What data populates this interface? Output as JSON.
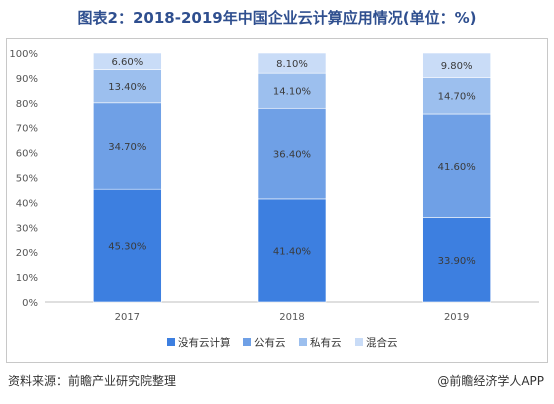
{
  "title": "图表2：2018-2019年中国企业云计算应用情况(单位：%)",
  "source_text": "资料来源：前瞻产业研究院整理",
  "credit_text": "@前瞻经济学人APP",
  "colors": {
    "title": "#2f4f8f",
    "series": [
      "#3d7fe0",
      "#6fa0e6",
      "#9cbfee",
      "#c9dcf7"
    ],
    "axis_text": "#555555",
    "label_text": "#3a3a3a"
  },
  "chart_data": {
    "type": "bar",
    "stacked": true,
    "categories": [
      "2017",
      "2018",
      "2019"
    ],
    "series": [
      {
        "name": "没有云计算",
        "values": [
          45.3,
          41.4,
          33.9
        ],
        "labels": [
          "45.30%",
          "41.40%",
          "33.90%"
        ]
      },
      {
        "name": "公有云",
        "values": [
          34.7,
          36.4,
          41.6
        ],
        "labels": [
          "34.70%",
          "36.40%",
          "41.60%"
        ]
      },
      {
        "name": "私有云",
        "values": [
          13.4,
          14.1,
          14.7
        ],
        "labels": [
          "13.40%",
          "14.10%",
          "14.70%"
        ]
      },
      {
        "name": "混合云",
        "values": [
          6.6,
          8.1,
          9.8
        ],
        "labels": [
          "6.60%",
          "8.10%",
          "9.80%"
        ]
      }
    ],
    "ylim": [
      0,
      100
    ],
    "yticks": [
      0,
      10,
      20,
      30,
      40,
      50,
      60,
      70,
      80,
      90,
      100
    ],
    "ytick_labels": [
      "0%",
      "10%",
      "20%",
      "30%",
      "40%",
      "50%",
      "60%",
      "70%",
      "80%",
      "90%",
      "100%"
    ],
    "grid": false,
    "legend_position": "bottom"
  }
}
